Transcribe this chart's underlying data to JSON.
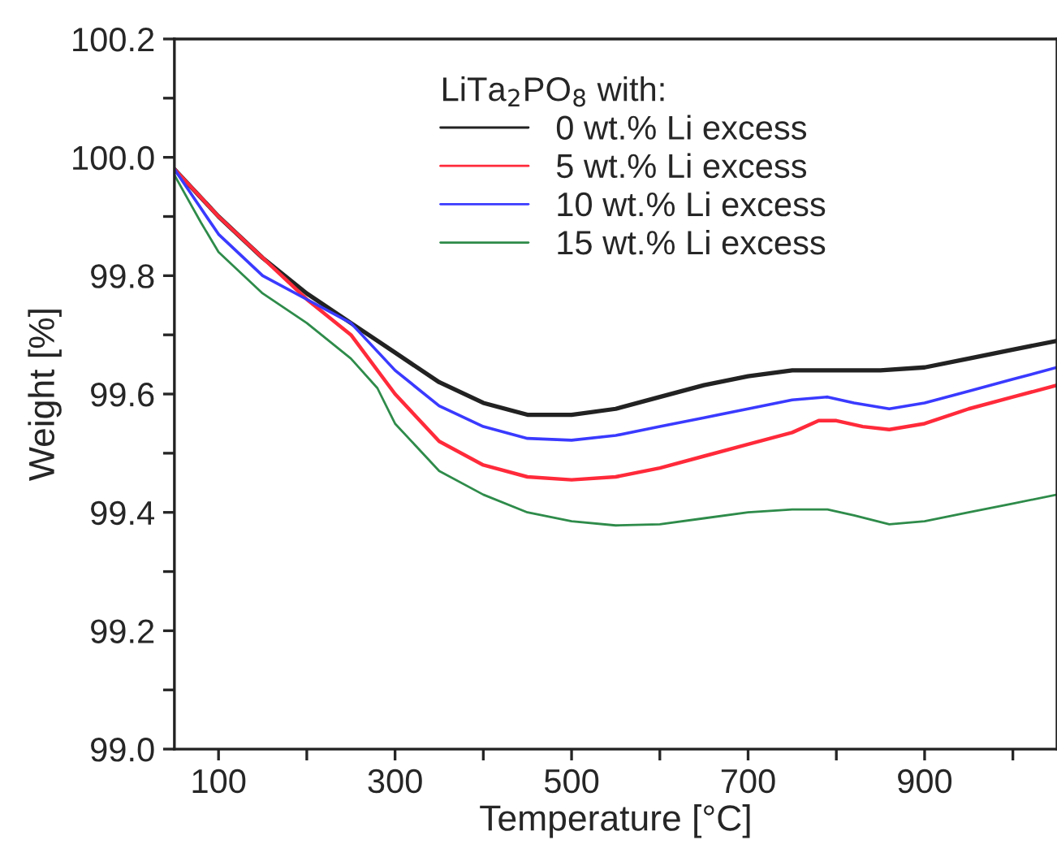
{
  "chart_data": {
    "type": "line",
    "xlabel": "Temperature [°C]",
    "ylabel": "Weight [%]",
    "legend_title": "LiTa$_{2}$PO$_{8}$ with:",
    "legend": "top",
    "grid": false,
    "marker": "none",
    "line_style": "solid",
    "xlim": [
      50,
      1050
    ],
    "xticks": [
      100,
      {
        "value": 200,
        "label": null
      },
      300,
      {
        "value": 400,
        "label": null
      },
      500,
      {
        "value": 600,
        "label": null
      },
      700,
      {
        "value": 800,
        "label": null
      },
      900,
      {
        "value": 1000,
        "label": null
      }
    ],
    "ylim": [
      99.0,
      100.2
    ],
    "yticks": [
      {
        "value": 99.0,
        "label": "99.0"
      },
      {
        "value": 99.1,
        "label": null
      },
      99.2,
      {
        "value": 99.3,
        "label": null
      },
      99.4,
      {
        "value": 99.5,
        "label": null
      },
      99.6,
      {
        "value": 99.7,
        "label": null
      },
      99.8,
      {
        "value": 99.9,
        "label": null
      },
      {
        "value": 100.0,
        "label": "100.0"
      },
      {
        "value": 100.1,
        "label": null
      },
      100.2
    ],
    "series": [
      {
        "name": "0 wt.% Li excess",
        "color": "#222222",
        "x": [
          50,
          100,
          150,
          200,
          250,
          300,
          350,
          400,
          450,
          500,
          550,
          600,
          650,
          700,
          750,
          800,
          850,
          900,
          950,
          1000,
          1050
        ],
        "values": [
          99.98,
          99.9,
          99.83,
          99.77,
          99.72,
          99.67,
          99.62,
          99.585,
          99.565,
          99.565,
          99.575,
          99.595,
          99.615,
          99.63,
          99.64,
          99.64,
          99.64,
          99.645,
          99.66,
          99.675,
          99.69
        ]
      },
      {
        "name": "5 wt.% Li excess",
        "color": "#ff2a3a",
        "x": [
          50,
          100,
          150,
          200,
          250,
          300,
          350,
          400,
          450,
          500,
          550,
          600,
          650,
          700,
          750,
          780,
          800,
          830,
          860,
          900,
          950,
          1000,
          1050
        ],
        "values": [
          99.98,
          99.9,
          99.83,
          99.76,
          99.7,
          99.6,
          99.52,
          99.48,
          99.46,
          99.455,
          99.46,
          99.475,
          99.495,
          99.515,
          99.535,
          99.555,
          99.555,
          99.545,
          99.54,
          99.55,
          99.575,
          99.595,
          99.615
        ]
      },
      {
        "name": "10 wt.% Li excess",
        "color": "#3a3aff",
        "x": [
          50,
          100,
          150,
          200,
          250,
          300,
          350,
          400,
          450,
          500,
          550,
          600,
          650,
          700,
          750,
          790,
          820,
          860,
          900,
          950,
          1000,
          1050
        ],
        "values": [
          99.98,
          99.87,
          99.8,
          99.76,
          99.72,
          99.64,
          99.58,
          99.545,
          99.525,
          99.522,
          99.53,
          99.545,
          99.56,
          99.575,
          99.59,
          99.595,
          99.585,
          99.575,
          99.585,
          99.605,
          99.625,
          99.645
        ]
      },
      {
        "name": "15 wt.% Li excess",
        "color": "#2e8b4a",
        "x": [
          50,
          80,
          100,
          150,
          200,
          250,
          280,
          300,
          350,
          400,
          450,
          500,
          550,
          600,
          650,
          700,
          750,
          790,
          820,
          860,
          900,
          950,
          1000,
          1050
        ],
        "values": [
          99.97,
          99.89,
          99.84,
          99.77,
          99.72,
          99.66,
          99.61,
          99.55,
          99.47,
          99.43,
          99.4,
          99.385,
          99.378,
          99.38,
          99.39,
          99.4,
          99.405,
          99.405,
          99.395,
          99.38,
          99.385,
          99.4,
          99.415,
          99.43
        ]
      }
    ]
  }
}
